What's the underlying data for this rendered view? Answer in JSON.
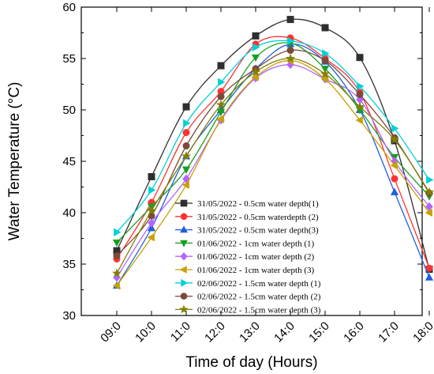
{
  "chart_data": {
    "type": "line",
    "title": "",
    "xlabel": "Time of day (Hours)",
    "ylabel": "Water Temperature (°C)",
    "categories": [
      "09:0",
      "10:0",
      "11:0",
      "12:0",
      "13:0",
      "14:0",
      "15:0",
      "16:0",
      "17:0",
      "18:0"
    ],
    "ylim": [
      30,
      60
    ],
    "yticks": [
      30,
      35,
      40,
      45,
      50,
      55,
      60
    ],
    "grid": false,
    "legend_position": "lower-center",
    "series": [
      {
        "name": "31/05/2022 - 0.5cm water depth(1)",
        "color": "#2f2f2f",
        "marker": "square",
        "values": [
          36.3,
          43.5,
          50.3,
          54.3,
          57.2,
          58.8,
          58.0,
          55.1,
          47.0,
          34.5
        ]
      },
      {
        "name": "31/05/2022 - 0.5cm waterdepth (2)",
        "color": "#ff3333",
        "marker": "circle",
        "values": [
          35.5,
          41.0,
          47.8,
          51.8,
          56.4,
          57.0,
          55.0,
          51.7,
          43.3,
          34.6
        ]
      },
      {
        "name": "31/05/2022 - 0.5cm water depth(3)",
        "color": "#1f5fe0",
        "marker": "triangle-up",
        "values": [
          32.9,
          38.5,
          45.5,
          50.0,
          54.0,
          56.4,
          54.7,
          50.0,
          42.0,
          33.7
        ]
      },
      {
        "name": "01/06/2022 - 1cm water depth (1)",
        "color": "#18a020",
        "marker": "triangle-down",
        "values": [
          37.1,
          40.6,
          44.2,
          49.8,
          55.1,
          56.5,
          54.0,
          50.0,
          45.4,
          41.6
        ]
      },
      {
        "name": "01/06/2022 - 1cm water depth (2)",
        "color": "#b266ff",
        "marker": "diamond",
        "values": [
          33.7,
          39.0,
          43.3,
          49.0,
          53.1,
          54.4,
          53.0,
          51.0,
          45.0,
          40.6
        ]
      },
      {
        "name": "01/06/2022 - 1cm water depth (3)",
        "color": "#c8a000",
        "marker": "triangle-left",
        "values": [
          32.9,
          37.6,
          42.7,
          49.1,
          53.2,
          54.8,
          53.0,
          49.0,
          44.6,
          40.0
        ]
      },
      {
        "name": "02/06/2022 - 1.5cm water depth (1)",
        "color": "#00d0d8",
        "marker": "triangle-right",
        "values": [
          38.1,
          42.2,
          48.7,
          52.7,
          56.1,
          56.7,
          55.5,
          52.3,
          48.2,
          43.2
        ]
      },
      {
        "name": "02/06/2022 - 1.5cm water depth (2)",
        "color": "#7a4a3a",
        "marker": "circle",
        "values": [
          35.8,
          39.7,
          46.5,
          51.3,
          54.0,
          55.8,
          54.8,
          51.5,
          47.3,
          41.9
        ]
      },
      {
        "name": "02/06/2022 - 1.5cm water depth (3)",
        "color": "#808000",
        "marker": "star",
        "values": [
          34.1,
          40.2,
          45.5,
          50.5,
          53.7,
          55.0,
          53.5,
          50.3,
          47.1,
          42.0
        ]
      }
    ]
  }
}
